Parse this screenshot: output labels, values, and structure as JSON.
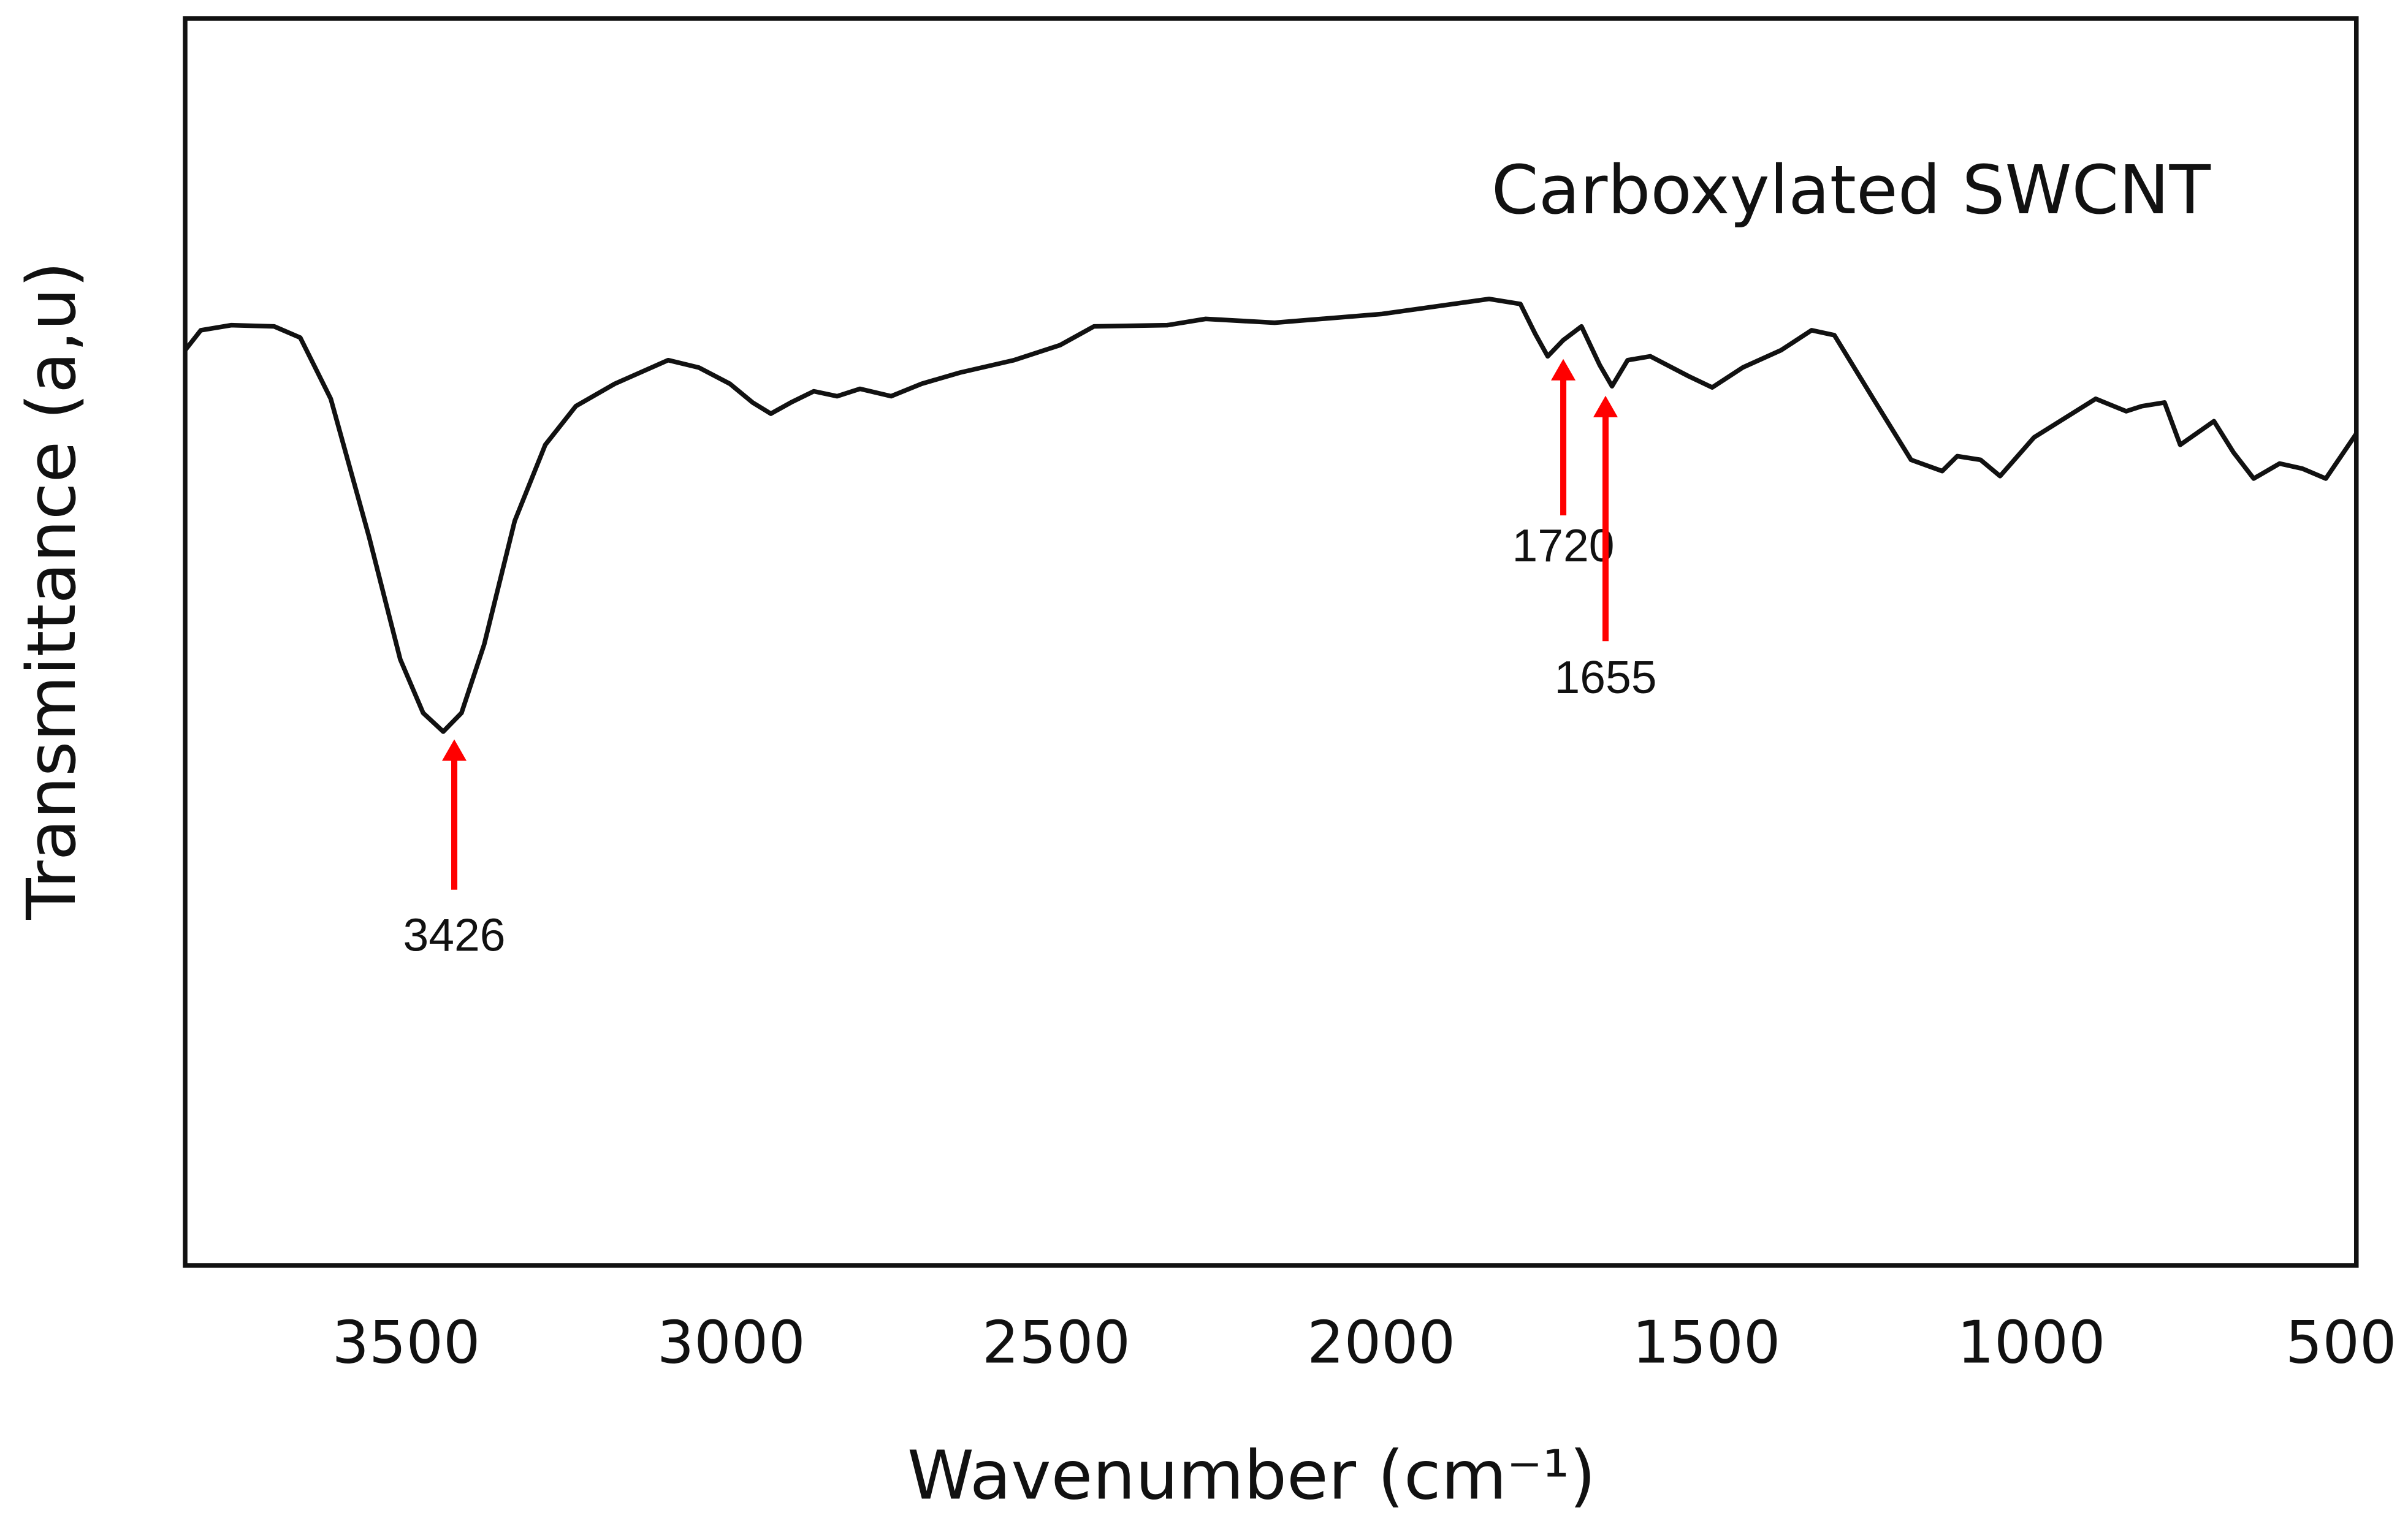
{
  "chart_data": {
    "type": "line",
    "title": "Carboxylated SWCNT",
    "xlabel": "Wavenumber (cm⁻¹)",
    "ylabel": "Transmittance (a,u)",
    "xlim": [
      3840,
      500
    ],
    "xticks": [
      3500,
      3000,
      2500,
      2000,
      1500,
      1000,
      500
    ],
    "ylim": [
      0,
      100
    ],
    "series": [
      {
        "color": "#111111",
        "x": [
          3840,
          3816,
          3769,
          3703,
          3663,
          3616,
          3557,
          3509,
          3474,
          3443,
          3415,
          3380,
          3333,
          3286,
          3239,
          3179,
          3097,
          3050,
          3002,
          2967,
          2939,
          2908,
          2873,
          2837,
          2802,
          2754,
          2707,
          2648,
          2565,
          2494,
          2442,
          2329,
          2270,
          2164,
          1999,
          1834,
          1786,
          1763,
          1744,
          1720,
          1692,
          1664,
          1645,
          1621,
          1586,
          1527,
          1491,
          1444,
          1385,
          1338,
          1303,
          1243,
          1185,
          1137,
          1114,
          1078,
          1048,
          996,
          901,
          854,
          830,
          795,
          771,
          719,
          689,
          658,
          618,
          583,
          547,
          500
        ],
        "values": [
          73.4,
          75.0,
          75.4,
          75.3,
          74.4,
          69.5,
          58.4,
          48.6,
          44.3,
          42.8,
          44.3,
          49.8,
          59.7,
          65.8,
          68.9,
          70.7,
          72.6,
          72.0,
          70.7,
          69.2,
          68.3,
          69.2,
          70.1,
          69.7,
          70.3,
          69.7,
          70.7,
          71.6,
          72.6,
          73.8,
          75.3,
          75.4,
          75.9,
          75.6,
          76.3,
          77.5,
          77.1,
          74.7,
          72.9,
          74.2,
          75.3,
          72.2,
          70.5,
          72.6,
          72.9,
          71.3,
          70.4,
          72.0,
          73.4,
          75.0,
          74.6,
          69.5,
          64.6,
          63.7,
          64.9,
          64.6,
          63.3,
          66.4,
          69.5,
          68.5,
          68.9,
          69.2,
          65.8,
          67.7,
          65.2,
          63.1,
          64.3,
          63.9,
          63.1,
          66.7
        ]
      }
    ],
    "annotations": [
      {
        "text": "3426",
        "x": 3426,
        "color": "#ff0000"
      },
      {
        "text": "1720",
        "x": 1720,
        "color": "#ff0000"
      },
      {
        "text": "1655",
        "x": 1655,
        "color": "#ff0000"
      }
    ]
  }
}
